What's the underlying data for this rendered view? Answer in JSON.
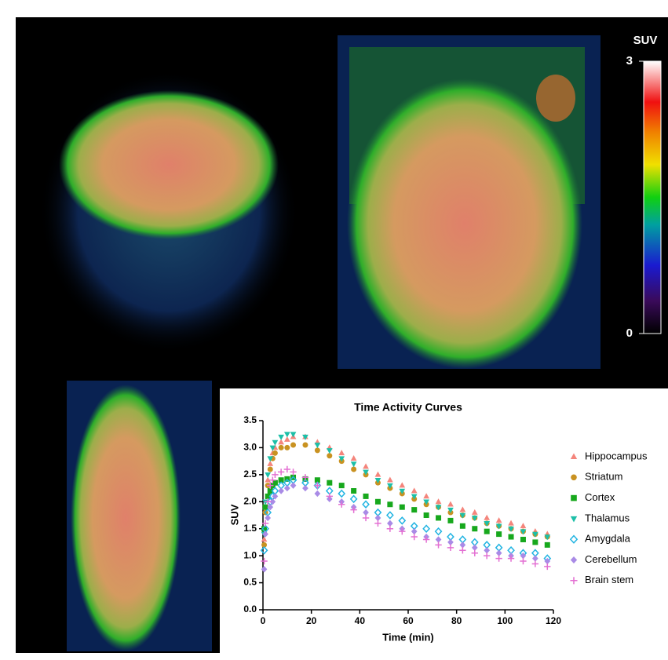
{
  "colorbar": {
    "title": "SUV",
    "ticks": [
      0,
      3
    ]
  },
  "chart_data": {
    "type": "scatter",
    "title": "Time Activity Curves",
    "x_label": "Time (min)",
    "y_label": "SUV",
    "xlim": [
      0,
      120
    ],
    "ylim": [
      0,
      3.5
    ],
    "xticks": [
      0,
      20,
      40,
      60,
      80,
      100,
      120
    ],
    "yticks": [
      {
        "value": 0,
        "label": "0.0"
      },
      0.5,
      {
        "value": 1,
        "label": "1.0"
      },
      1.5,
      {
        "value": 2,
        "label": "2.0"
      },
      2.5,
      {
        "value": 3,
        "label": "3.0"
      },
      3.5
    ],
    "grid": false,
    "legend": "right",
    "x": [
      0.5,
      1,
      2,
      3,
      4,
      5,
      7.5,
      10,
      12.5,
      17.5,
      22.5,
      27.5,
      32.5,
      37.5,
      42.5,
      47.5,
      52.5,
      57.5,
      62.5,
      67.5,
      72.5,
      77.5,
      82.5,
      87.5,
      92.5,
      97.5,
      102.5,
      107.5,
      112.5,
      117.5
    ],
    "series": [
      {
        "name": "Hippocampus",
        "color": "#f4857c",
        "marker": "triangle-up",
        "values": [
          1.3,
          1.9,
          2.4,
          2.7,
          2.9,
          3.0,
          3.1,
          3.15,
          3.2,
          3.2,
          3.1,
          3.0,
          2.9,
          2.8,
          2.65,
          2.5,
          2.4,
          2.3,
          2.2,
          2.1,
          2.0,
          1.95,
          1.85,
          1.8,
          1.7,
          1.65,
          1.6,
          1.55,
          1.45,
          1.4
        ]
      },
      {
        "name": "Striatum",
        "color": "#c99221",
        "marker": "circle",
        "values": [
          1.2,
          1.8,
          2.3,
          2.6,
          2.8,
          2.9,
          3.0,
          3.0,
          3.05,
          3.05,
          2.95,
          2.85,
          2.75,
          2.6,
          2.5,
          2.35,
          2.25,
          2.15,
          2.05,
          1.95,
          1.9,
          1.8,
          1.75,
          1.7,
          1.6,
          1.55,
          1.5,
          1.45,
          1.4,
          1.35
        ]
      },
      {
        "name": "Cortex",
        "color": "#17a81d",
        "marker": "square",
        "values": [
          1.5,
          1.9,
          2.1,
          2.2,
          2.3,
          2.35,
          2.4,
          2.42,
          2.45,
          2.42,
          2.4,
          2.35,
          2.3,
          2.2,
          2.1,
          2.0,
          1.95,
          1.9,
          1.85,
          1.75,
          1.7,
          1.65,
          1.55,
          1.5,
          1.45,
          1.4,
          1.35,
          1.3,
          1.25,
          1.2
        ]
      },
      {
        "name": "Thalamus",
        "color": "#1dbfa8",
        "marker": "triangle-down",
        "values": [
          1.4,
          2.0,
          2.5,
          2.8,
          3.0,
          3.1,
          3.2,
          3.25,
          3.25,
          3.2,
          3.05,
          2.95,
          2.8,
          2.7,
          2.55,
          2.4,
          2.3,
          2.2,
          2.1,
          2.0,
          1.9,
          1.85,
          1.75,
          1.7,
          1.6,
          1.55,
          1.5,
          1.45,
          1.4,
          1.35
        ]
      },
      {
        "name": "Amygdala",
        "color": "#22b4e2",
        "marker": "diamond-open",
        "values": [
          1.1,
          1.5,
          1.8,
          2.0,
          2.1,
          2.2,
          2.3,
          2.35,
          2.4,
          2.35,
          2.3,
          2.2,
          2.15,
          2.05,
          1.95,
          1.8,
          1.75,
          1.65,
          1.55,
          1.5,
          1.45,
          1.35,
          1.3,
          1.25,
          1.2,
          1.15,
          1.1,
          1.05,
          1.05,
          0.95
        ]
      },
      {
        "name": "Cerebellum",
        "color": "#a98be6",
        "marker": "diamond",
        "values": [
          0.75,
          1.4,
          1.7,
          1.9,
          2.0,
          2.1,
          2.2,
          2.25,
          2.3,
          2.25,
          2.15,
          2.05,
          2.0,
          1.9,
          1.8,
          1.7,
          1.6,
          1.5,
          1.45,
          1.35,
          1.3,
          1.25,
          1.2,
          1.15,
          1.1,
          1.05,
          1.0,
          1.0,
          0.95,
          0.9
        ]
      },
      {
        "name": "Brain stem",
        "color": "#e36fd2",
        "marker": "plus",
        "values": [
          0.9,
          1.6,
          2.0,
          2.3,
          2.4,
          2.5,
          2.55,
          2.6,
          2.55,
          2.45,
          2.3,
          2.1,
          1.95,
          1.85,
          1.7,
          1.6,
          1.5,
          1.45,
          1.35,
          1.3,
          1.2,
          1.15,
          1.1,
          1.05,
          1.0,
          0.95,
          0.95,
          0.9,
          0.85,
          0.8
        ]
      }
    ]
  }
}
